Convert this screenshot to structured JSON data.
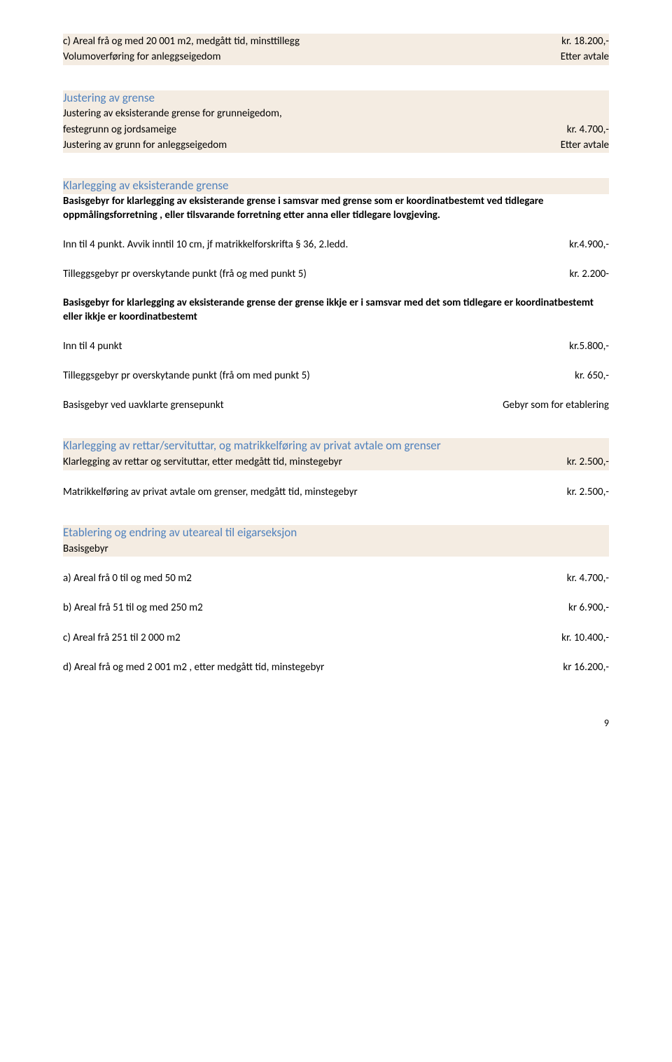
{
  "sec1": {
    "row1": {
      "left": "c) Areal frå og med  20 001 m2, medgått tid, minsttillegg",
      "right": "kr.   18.200,-"
    },
    "row2": {
      "left": "Volumoverføring for anleggseigedom",
      "right": "Etter avtale"
    }
  },
  "sec2": {
    "title": "Justering av grense",
    "row1": {
      "left": "Justering av eksisterande grense for grunneigedom,",
      "right": ""
    },
    "row2": {
      "left": "festegrunn og jordsameige",
      "right": "kr. 4.700,-"
    },
    "row3": {
      "left": "Justering av grunn for anleggseigedom",
      "right": "Etter avtale"
    }
  },
  "sec3": {
    "title": "Klarlegging av eksisterande grense",
    "p1": "Basisgebyr for klarlegging av eksisterande grense i samsvar med grense som er koordinatbestemt ved tidlegare oppmålingsforretning , eller tilsvarande forretning etter anna eller tidlegare lovgjeving.",
    "row1": {
      "left": "Inn til 4 punkt. Avvik inntil 10 cm, jf matrikkelforskrifta § 36, 2.ledd.",
      "right": "kr.4.900,-"
    },
    "row2": {
      "left": "Tilleggsgebyr pr overskytande punkt (frå og med punkt 5)",
      "right": "kr. 2.200-"
    },
    "p2": "Basisgebyr for klarlegging av eksisterande grense der grense ikkje er i samsvar med det som tidlegare er koordinatbestemt eller ikkje er koordinatbestemt",
    "row3": {
      "left": "Inn til 4 punkt",
      "right": "kr.5.800,-"
    },
    "row4": {
      "left": "Tilleggsgebyr pr overskytande punkt (frå om med punkt 5)",
      "right": "kr. 650,-"
    },
    "row5": {
      "left": "Basisgebyr ved uavklarte grensepunkt",
      "right": "Gebyr som for etablering"
    }
  },
  "sec4": {
    "title": "Klarlegging av rettar/servituttar, og matrikkelføring av privat avtale om grenser",
    "row1": {
      "left": "Klarlegging av rettar og servituttar, etter medgått tid, minstegebyr",
      "right": "kr. 2.500,-"
    },
    "row2": {
      "left": "Matrikkelføring av privat avtale om grenser, medgått tid, minstegebyr",
      "right": "kr. 2.500,-"
    }
  },
  "sec5": {
    "title": "Etablering og endring av uteareal til eigarseksjon",
    "row0": {
      "left": "Basisgebyr",
      "right": ""
    },
    "row1": {
      "left": "a) Areal frå 0 til og med 50 m2",
      "right": "kr. 4.700,-"
    },
    "row2": {
      "left": "b) Areal frå 51 til og med 250 m2",
      "right": "kr 6.900,-"
    },
    "row3": {
      "left": "c) Areal frå 251 til 2 000 m2",
      "right": "kr. 10.400,-"
    },
    "row4": {
      "left": "d) Areal frå og med 2 001  m2 , etter medgått tid, minstegebyr",
      "right": "kr  16.200,-"
    }
  },
  "pagenum": "9"
}
